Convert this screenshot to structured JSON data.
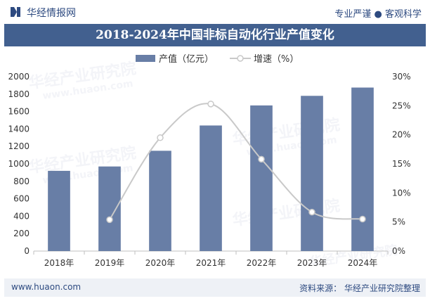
{
  "header": {
    "brand": "华经情报网",
    "tagline": "专业严谨 ● 客观科学"
  },
  "watermark": {
    "text": "华经产业研究院",
    "url": "www.huaon.com"
  },
  "footer": {
    "url": "www.huaon.com",
    "source": "资料来源：  华经产业研究院整理"
  },
  "colors": {
    "bar": "#687ea6",
    "line": "#c9c9c9",
    "title_band": "#42608f",
    "brand": "#2d4a80"
  },
  "chart_data": {
    "type": "bar",
    "title": "2018-2024年中国非标自动化行业产值变化",
    "categories": [
      "2018年",
      "2019年",
      "2020年",
      "2021年",
      "2022年",
      "2023年",
      "2024年"
    ],
    "series": [
      {
        "name": "产值（亿元）",
        "type": "bar",
        "axis": "left",
        "values": [
          920,
          970,
          1150,
          1440,
          1670,
          1780,
          1875
        ]
      },
      {
        "name": "增速（%）",
        "type": "line",
        "axis": "right",
        "smooth": true,
        "values": [
          null,
          5.4,
          19.5,
          25.3,
          15.8,
          6.7,
          5.5
        ]
      }
    ],
    "y_left": {
      "min": 0,
      "max": 2000,
      "ticks": [
        0,
        200,
        400,
        600,
        800,
        1000,
        1200,
        1400,
        1600,
        1800,
        2000
      ]
    },
    "y_right": {
      "min": 0,
      "max": 30,
      "ticks": [
        "0%",
        "5%",
        "10%",
        "15%",
        "20%",
        "25%",
        "30%"
      ]
    },
    "grid": false,
    "legend": "top-center"
  }
}
